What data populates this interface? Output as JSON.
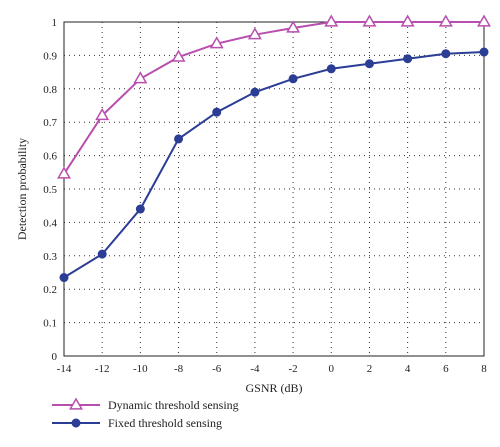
{
  "chart_data": {
    "type": "line",
    "title": "",
    "xlabel": "GSNR (dB)",
    "ylabel": "Detection probability",
    "x": [
      -14,
      -12,
      -10,
      -8,
      -6,
      -4,
      -2,
      0,
      2,
      4,
      6,
      8
    ],
    "xlim": [
      -14,
      8
    ],
    "ylim": [
      0,
      1
    ],
    "xticks": [
      "-14",
      "-12",
      "-10",
      "-8",
      "-6",
      "-4",
      "-2",
      "0",
      "2",
      "4",
      "6",
      "8"
    ],
    "yticks": [
      "0",
      "0.1",
      "0.2",
      "0.3",
      "0.4",
      "0.5",
      "0.6",
      "0.7",
      "0.8",
      "0.9",
      "1"
    ],
    "grid": true,
    "legend_position": "bottom-left, below the plot",
    "series": [
      {
        "name": "Dynamic threshold sensing",
        "color": "#b84fae",
        "marker": "triangle",
        "values": [
          0.545,
          0.72,
          0.83,
          0.895,
          0.935,
          0.962,
          0.982,
          1.0,
          1.0,
          1.0,
          1.0,
          1.0
        ]
      },
      {
        "name": "Fixed threshold sensing",
        "color": "#2b3d94",
        "marker": "circle",
        "values": [
          0.235,
          0.305,
          0.44,
          0.65,
          0.73,
          0.79,
          0.83,
          0.86,
          0.875,
          0.89,
          0.905,
          0.91
        ]
      }
    ]
  }
}
